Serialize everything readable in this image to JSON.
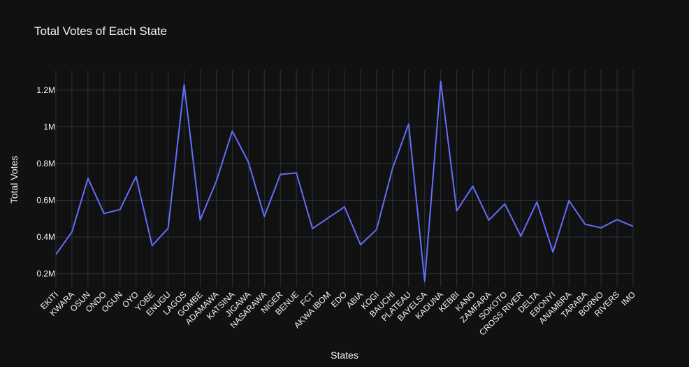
{
  "chart_data": {
    "type": "line",
    "title": "Total Votes of Each State",
    "xlabel": "States",
    "ylabel": "Total Votes",
    "grid": true,
    "line_color": "#636efa",
    "background_color": "#111111",
    "grid_color": "#283442",
    "y_ticks": [
      200000,
      400000,
      600000,
      800000,
      1000000,
      1200000
    ],
    "y_tick_labels": [
      "0.2M",
      "0.4M",
      "0.6M",
      "0.8M",
      "1M",
      "1.2M"
    ],
    "ylim": [
      130000,
      1310000
    ],
    "categories": [
      "EKITI",
      "KWARA",
      "OSUN",
      "ONDO",
      "OGUN",
      "OYO",
      "YOBE",
      "ENUGU",
      "LAGOS",
      "GOMBE",
      "ADAMAWA",
      "KATSINA",
      "JIGAWA",
      "NASARAWA",
      "NIGER",
      "BENUE",
      "FCT",
      "AKWA IBOM",
      "EDO",
      "ABIA",
      "KOGI",
      "BAUCHI",
      "PLATEAU",
      "BAYELSA",
      "KADUNA",
      "KEBBI",
      "KANO",
      "ZAMFARA",
      "SOKOTO",
      "CROSS RIVER",
      "DELTA",
      "EBONYI",
      "ANAMBRA",
      "TARABA",
      "BORNO",
      "RIVERS",
      "IMO"
    ],
    "values": [
      305000,
      428000,
      720000,
      528000,
      550000,
      730000,
      353000,
      448000,
      1230000,
      493000,
      702000,
      977000,
      810000,
      512000,
      741000,
      749000,
      446000,
      505000,
      564000,
      358000,
      441000,
      775000,
      1015000,
      160000,
      1247000,
      543000,
      677000,
      492000,
      580000,
      405000,
      591000,
      318000,
      598000,
      470000,
      450000,
      495000,
      458000
    ]
  }
}
